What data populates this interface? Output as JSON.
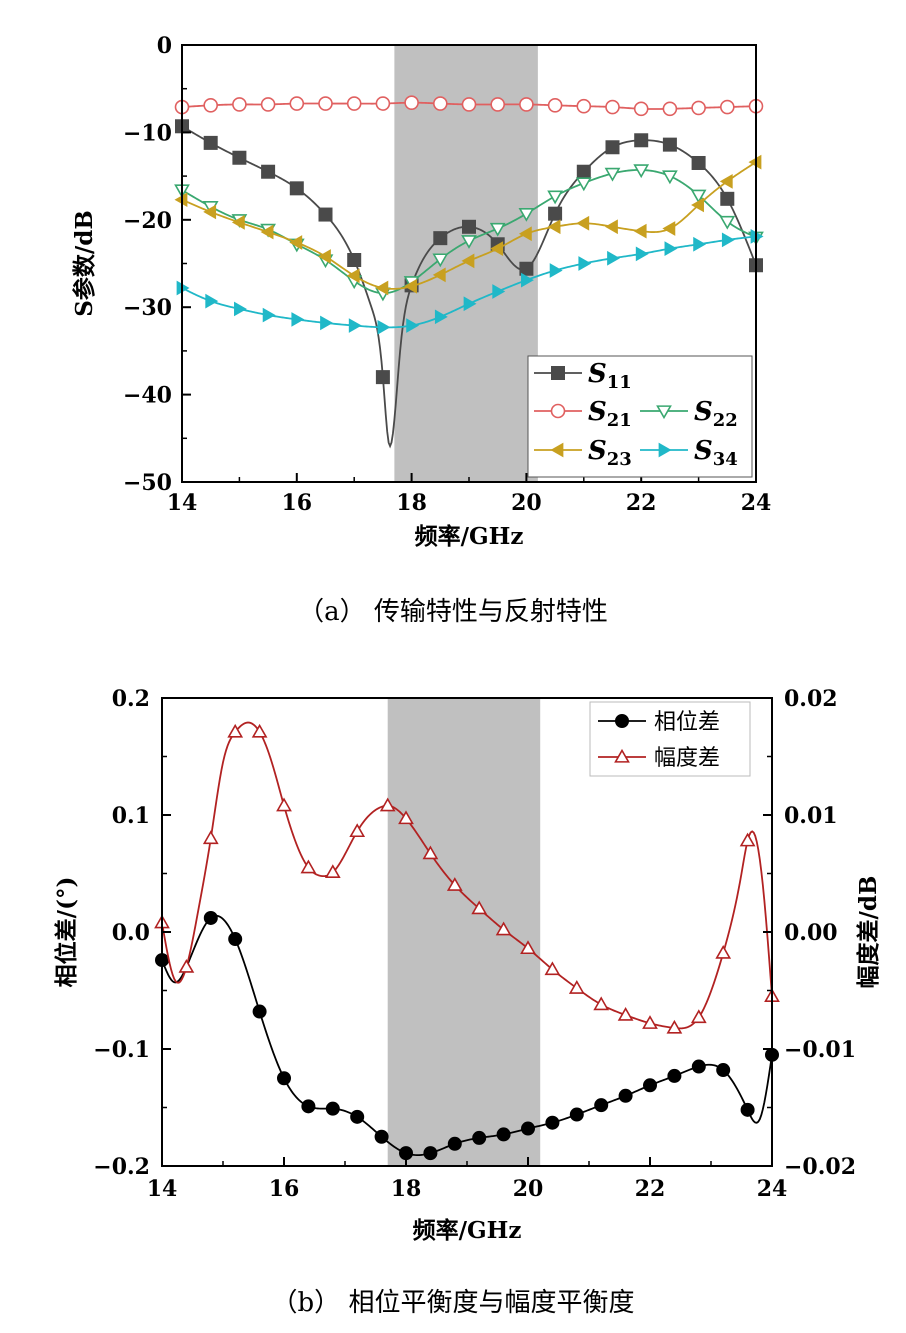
{
  "chart_data": [
    {
      "type": "line",
      "caption": "（a） 传输特性与反射特性",
      "xlabel": "频率/GHz",
      "ylabel": "S参数/dB",
      "xlim": [
        14,
        24
      ],
      "ylim": [
        -50,
        0
      ],
      "xticks": [
        14,
        16,
        18,
        20,
        22,
        24
      ],
      "yticks": [
        0,
        -10,
        -20,
        -30,
        -40,
        -50
      ],
      "shaded_band": [
        17.7,
        20.2
      ],
      "legend_position": "bottom-right",
      "series": [
        {
          "name": "S",
          "sub": "11",
          "color": "#4a4a4a",
          "marker": "square",
          "x": [
            14,
            14.5,
            15,
            15.5,
            16,
            16.5,
            17,
            17.3,
            17.5,
            17.6,
            17.8,
            18,
            18.5,
            19,
            19.5,
            20,
            20.5,
            21,
            21.5,
            22,
            22.5,
            23,
            23.5,
            24
          ],
          "y": [
            -9.3,
            -11.2,
            -12.9,
            -14.5,
            -16.4,
            -19.4,
            -24.6,
            -30,
            -38,
            -45.5,
            -35,
            -27.5,
            -22.1,
            -20.8,
            -22.8,
            -25.6,
            -19.3,
            -14.5,
            -11.7,
            -10.9,
            -11.4,
            -13.5,
            -17.6,
            -25.2
          ],
          "markers_x": [
            14,
            14.5,
            15,
            15.5,
            16,
            16.5,
            17,
            17.5,
            18,
            18.5,
            19,
            19.5,
            20,
            20.5,
            21,
            21.5,
            22,
            22.5,
            23,
            23.5,
            24
          ]
        },
        {
          "name": "S",
          "sub": "21",
          "color": "#e06060",
          "marker": "circle",
          "x": [
            14,
            14.5,
            15,
            15.5,
            16,
            16.5,
            17,
            17.5,
            18,
            18.5,
            19,
            19.5,
            20,
            20.5,
            21,
            21.5,
            22,
            22.5,
            23,
            23.5,
            24
          ],
          "y": [
            -7.1,
            -6.9,
            -6.8,
            -6.8,
            -6.7,
            -6.7,
            -6.7,
            -6.7,
            -6.6,
            -6.7,
            -6.8,
            -6.8,
            -6.8,
            -6.9,
            -7.0,
            -7.1,
            -7.3,
            -7.3,
            -7.2,
            -7.1,
            -7.0
          ]
        },
        {
          "name": "S",
          "sub": "22",
          "color": "#3aa870",
          "marker": "triangle-down",
          "x": [
            14,
            14.5,
            15,
            15.5,
            16,
            16.5,
            17,
            17.5,
            18,
            18.5,
            19,
            19.5,
            20,
            20.5,
            21,
            21.5,
            22,
            22.5,
            23,
            23.5,
            24
          ],
          "y": [
            -16.6,
            -18.5,
            -20.0,
            -21.1,
            -22.8,
            -24.6,
            -27.0,
            -28.4,
            -27.1,
            -24.5,
            -22.4,
            -21.0,
            -19.3,
            -17.3,
            -15.8,
            -14.7,
            -14.3,
            -15.0,
            -17.2,
            -20.2,
            -22.0
          ]
        },
        {
          "name": "S",
          "sub": "23",
          "color": "#c8a020",
          "marker": "triangle-left",
          "x": [
            14,
            14.5,
            15,
            15.5,
            16,
            16.5,
            17,
            17.5,
            18,
            18.5,
            19,
            19.5,
            20,
            20.5,
            21,
            21.5,
            22,
            22.5,
            23,
            23.5,
            24
          ],
          "y": [
            -17.7,
            -19.1,
            -20.3,
            -21.4,
            -22.6,
            -24.2,
            -26.4,
            -27.8,
            -27.6,
            -26.3,
            -24.7,
            -23.3,
            -21.6,
            -20.8,
            -20.4,
            -20.8,
            -21.3,
            -21.0,
            -18.3,
            -15.6,
            -13.4
          ]
        },
        {
          "name": "S",
          "sub": "34",
          "color": "#20b8c8",
          "marker": "triangle-right",
          "x": [
            14,
            14.5,
            15,
            15.5,
            16,
            16.5,
            17,
            17.5,
            18,
            18.5,
            19,
            19.5,
            20,
            20.5,
            21,
            21.5,
            22,
            22.5,
            23,
            23.5,
            24
          ],
          "y": [
            -27.8,
            -29.3,
            -30.2,
            -30.9,
            -31.4,
            -31.8,
            -32.1,
            -32.3,
            -32.1,
            -31.1,
            -29.6,
            -28.2,
            -26.9,
            -25.8,
            -25.0,
            -24.4,
            -23.9,
            -23.3,
            -22.8,
            -22.3,
            -21.9
          ]
        }
      ]
    },
    {
      "type": "line",
      "caption": "（b） 相位平衡度与幅度平衡度",
      "xlabel": "频率/GHz",
      "ylabel_left": "相位差/(°)",
      "ylabel_right": "幅度差/dB",
      "xlim": [
        14,
        24
      ],
      "ylim_left": [
        -0.2,
        0.2
      ],
      "ylim_right": [
        -0.02,
        0.02
      ],
      "xticks": [
        14,
        16,
        18,
        20,
        22,
        24
      ],
      "yticks_left": [
        "0.2",
        "0.1",
        "0.0",
        "-0.1",
        "-0.2"
      ],
      "yticks_right": [
        "0.02",
        "0.01",
        "0.00",
        "-0.01",
        "-0.02"
      ],
      "shaded_band": [
        17.7,
        20.2
      ],
      "legend_position": "top-right",
      "series": [
        {
          "name": "相位差",
          "axis": "left",
          "color": "#000000",
          "marker": "circle-filled",
          "x": [
            14,
            14.2,
            14.4,
            14.6,
            14.8,
            15.2,
            15.6,
            16.0,
            16.4,
            16.8,
            17.2,
            17.6,
            18.0,
            18.4,
            18.8,
            19.2,
            19.6,
            20.0,
            20.4,
            20.8,
            21.2,
            21.6,
            22.0,
            22.4,
            22.8,
            23.2,
            23.6,
            23.8,
            24.0
          ],
          "y": [
            -0.024,
            -0.043,
            -0.03,
            -0.005,
            0.012,
            -0.006,
            -0.068,
            -0.125,
            -0.149,
            -0.151,
            -0.158,
            -0.175,
            -0.189,
            -0.189,
            -0.181,
            -0.176,
            -0.173,
            -0.168,
            -0.163,
            -0.156,
            -0.148,
            -0.14,
            -0.131,
            -0.123,
            -0.115,
            -0.118,
            -0.152,
            -0.16,
            -0.105
          ],
          "markers_x": [
            14.0,
            14.8,
            15.2,
            15.6,
            16.0,
            16.4,
            16.8,
            17.2,
            17.6,
            18.0,
            18.4,
            18.8,
            19.2,
            19.6,
            20.0,
            20.4,
            20.8,
            21.2,
            21.6,
            22.0,
            22.4,
            22.8,
            23.2,
            23.6,
            24.0
          ]
        },
        {
          "name": "幅度差",
          "axis": "right",
          "color": "#b22222",
          "marker": "triangle-up-open",
          "x": [
            14,
            14.2,
            14.4,
            14.6,
            14.8,
            15.0,
            15.2,
            15.4,
            15.6,
            15.8,
            16.0,
            16.4,
            16.6,
            16.8,
            17.2,
            17.6,
            17.7,
            18.0,
            18.4,
            18.8,
            19.2,
            19.6,
            20.0,
            20.4,
            20.8,
            21.2,
            21.6,
            22.0,
            22.4,
            22.8,
            23.2,
            23.5,
            23.6,
            23.7,
            23.85,
            24.0
          ],
          "y": [
            0.0008,
            -0.004,
            -0.003,
            0.002,
            0.008,
            0.0145,
            0.0171,
            0.0179,
            0.0171,
            0.0145,
            0.0108,
            0.0055,
            0.0048,
            0.0051,
            0.0086,
            0.0107,
            0.0108,
            0.0097,
            0.0067,
            0.004,
            0.002,
            0.0002,
            -0.0014,
            -0.0032,
            -0.0048,
            -0.0062,
            -0.0071,
            -0.0078,
            -0.0082,
            -0.0073,
            -0.0018,
            0.005,
            0.0078,
            0.0085,
            0.004,
            -0.0055
          ],
          "markers_x": [
            14.0,
            14.4,
            14.8,
            15.2,
            15.6,
            16.0,
            16.4,
            16.8,
            17.2,
            17.7,
            18.0,
            18.4,
            18.8,
            19.2,
            19.6,
            20.0,
            20.4,
            20.8,
            21.2,
            21.6,
            22.0,
            22.4,
            22.8,
            23.2,
            23.6,
            24.0
          ]
        }
      ]
    }
  ]
}
